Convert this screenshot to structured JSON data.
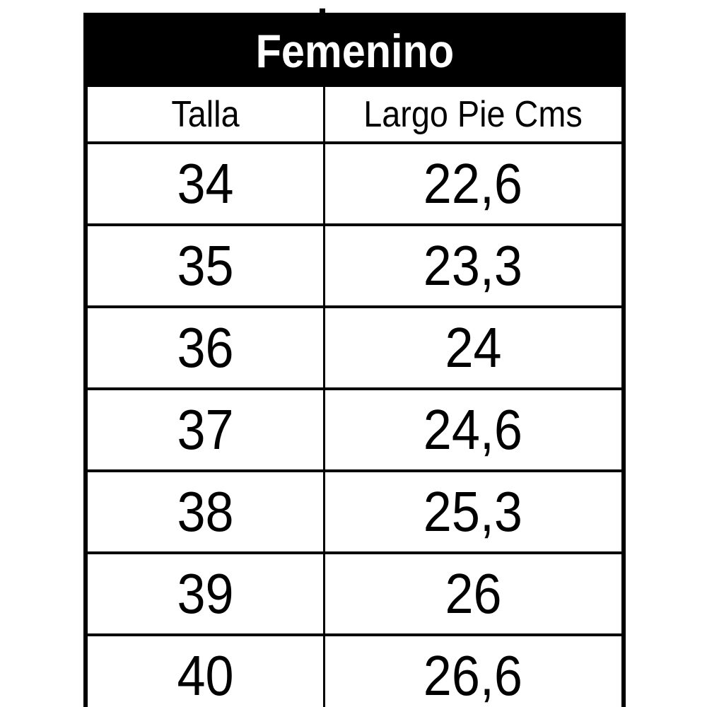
{
  "chart_data": {
    "type": "table",
    "title": "Femenino",
    "columns": [
      "Talla",
      "Largo Pie Cms"
    ],
    "rows": [
      [
        "34",
        "22,6"
      ],
      [
        "35",
        "23,3"
      ],
      [
        "36",
        "24"
      ],
      [
        "37",
        "24,6"
      ],
      [
        "38",
        "25,3"
      ],
      [
        "39",
        "26"
      ],
      [
        "40",
        "26,6"
      ]
    ]
  },
  "colors": {
    "title_background": "#000000",
    "title_text": "#ffffff",
    "border": "#000000",
    "cell_background": "#ffffff",
    "cell_text": "#000000"
  }
}
